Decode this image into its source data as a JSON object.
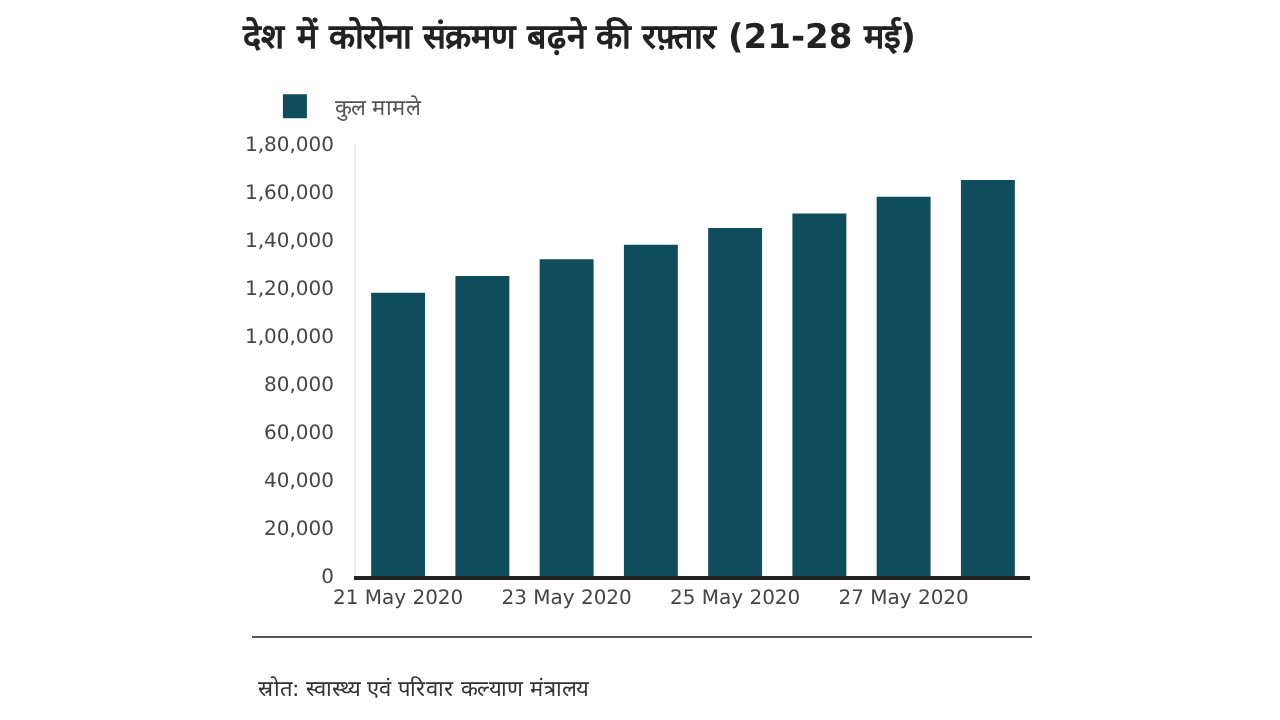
{
  "chart_data": {
    "type": "bar",
    "title": "देश में कोरोना संक्रमण बढ़ने की रफ़्तार (21-28 मई)",
    "x": [
      "2020-05-21",
      "2020-05-22",
      "2020-05-23",
      "2020-05-24",
      "2020-05-25",
      "2020-05-26",
      "2020-05-27",
      "2020-05-28"
    ],
    "series": [
      {
        "name": "कुल मामले",
        "color": "#0f4c5c",
        "values": [
          118000,
          125000,
          132000,
          138000,
          145000,
          151000,
          158000,
          165000
        ]
      }
    ],
    "xlim": [
      "2020-05-20T12:00",
      "2020-05-28T12:00"
    ],
    "xticks": [
      {
        "value": "2020-05-21",
        "label": "21 May 2020"
      },
      {
        "value": "2020-05-23",
        "label": "23 May 2020"
      },
      {
        "value": "2020-05-25",
        "label": "25 May 2020"
      },
      {
        "value": "2020-05-27",
        "label": "27 May 2020"
      }
    ],
    "ylim": [
      0,
      180000
    ],
    "yticks": [
      0,
      {
        "value": 20000,
        "label": "20,000"
      },
      {
        "value": 40000,
        "label": "40,000"
      },
      {
        "value": 60000,
        "label": "60,000"
      },
      {
        "value": 80000,
        "label": "80,000"
      },
      {
        "value": 100000,
        "label": "1,00,000"
      },
      {
        "value": 120000,
        "label": "1,20,000"
      },
      {
        "value": 140000,
        "label": "1,40,000"
      },
      {
        "value": 160000,
        "label": "1,60,000"
      },
      {
        "value": 180000,
        "label": "1,80,000"
      }
    ],
    "legend": "top left",
    "annotations": [
      "स्रोत: स्वास्थ्य एवं परिवार कल्याण मंत्रालय"
    ]
  }
}
